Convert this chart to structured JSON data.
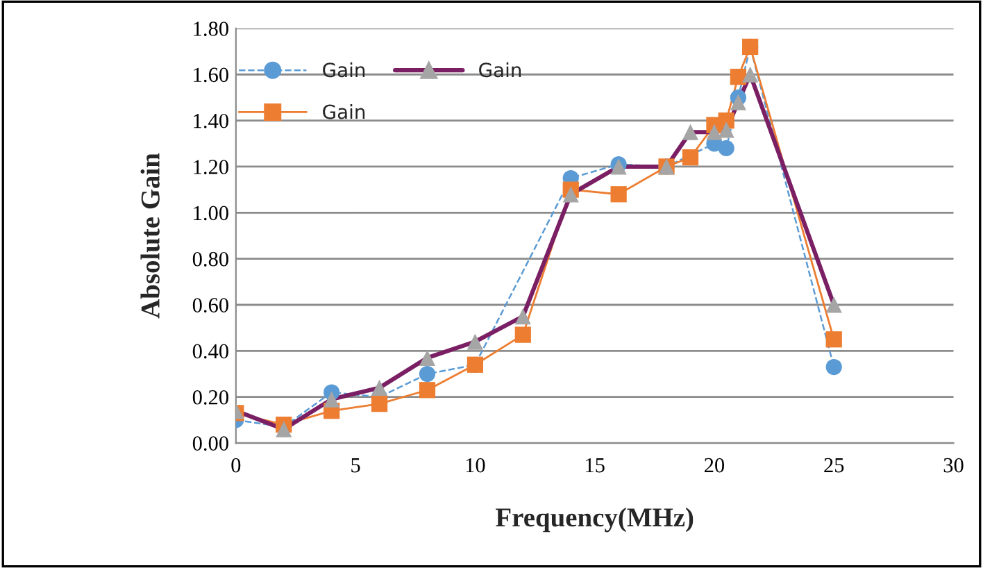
{
  "chart_data": {
    "type": "line",
    "xlabel": "Frequency(MHz)",
    "ylabel": "Absolute Gain",
    "xlim": [
      0,
      30
    ],
    "xticks": [
      0,
      5,
      10,
      15,
      20,
      25,
      30
    ],
    "ylim": [
      0,
      1.8
    ],
    "yticks": [
      {
        "value": 0,
        "label": "0.00"
      },
      {
        "value": 0.2,
        "label": "0.20"
      },
      {
        "value": 0.4,
        "label": "0.40"
      },
      {
        "value": 0.6,
        "label": "0.60"
      },
      {
        "value": 0.8,
        "label": "0.80"
      },
      {
        "value": 1.0,
        "label": "1.00"
      },
      {
        "value": 1.2,
        "label": "1.20"
      },
      {
        "value": 1.4,
        "label": "1.40"
      },
      {
        "value": 1.6,
        "label": "1.60"
      },
      {
        "value": 1.8,
        "label": "1.80"
      }
    ],
    "x": [
      0,
      2,
      4,
      6,
      8,
      10,
      12,
      14,
      16,
      18,
      19,
      20,
      20.5,
      21,
      21.5,
      25
    ],
    "grid": "y",
    "legend": "top left",
    "series": [
      {
        "name": "Gain",
        "color": "#5b9bd5",
        "marker": "circle",
        "line_style": "dashed",
        "values": [
          0.1,
          0.07,
          0.22,
          0.2,
          0.3,
          0.34,
          null,
          1.15,
          1.21,
          1.2,
          null,
          1.3,
          1.28,
          1.5,
          1.72,
          0.33
        ]
      },
      {
        "name": "Gain",
        "color": "#ed7d31",
        "marker": "square",
        "line_style": "solid",
        "values": [
          0.13,
          0.08,
          0.14,
          0.17,
          0.23,
          0.34,
          0.47,
          1.1,
          1.08,
          1.2,
          1.24,
          1.38,
          1.4,
          1.59,
          1.72,
          0.45
        ]
      },
      {
        "name": "Gain",
        "color": "#7a1f63",
        "marker": "triangle",
        "line_style": "solid",
        "colors": [
          "#a5a5a5",
          "#a5a5a5",
          "#a5a5a5",
          "#a5a5a5",
          "#a5a5a5",
          "#a5a5a5",
          "#a5a5a5",
          "#a5a5a5",
          "#a5a5a5",
          "#a5a5a5",
          "#a5a5a5",
          "#a5a5a5",
          "#a5a5a5",
          "#a5a5a5",
          "#a5a5a5",
          "#a5a5a5"
        ],
        "values": [
          0.14,
          0.06,
          0.19,
          0.24,
          0.37,
          0.44,
          0.55,
          1.08,
          1.2,
          1.2,
          1.35,
          1.35,
          1.36,
          1.48,
          1.6,
          0.6
        ]
      }
    ]
  }
}
